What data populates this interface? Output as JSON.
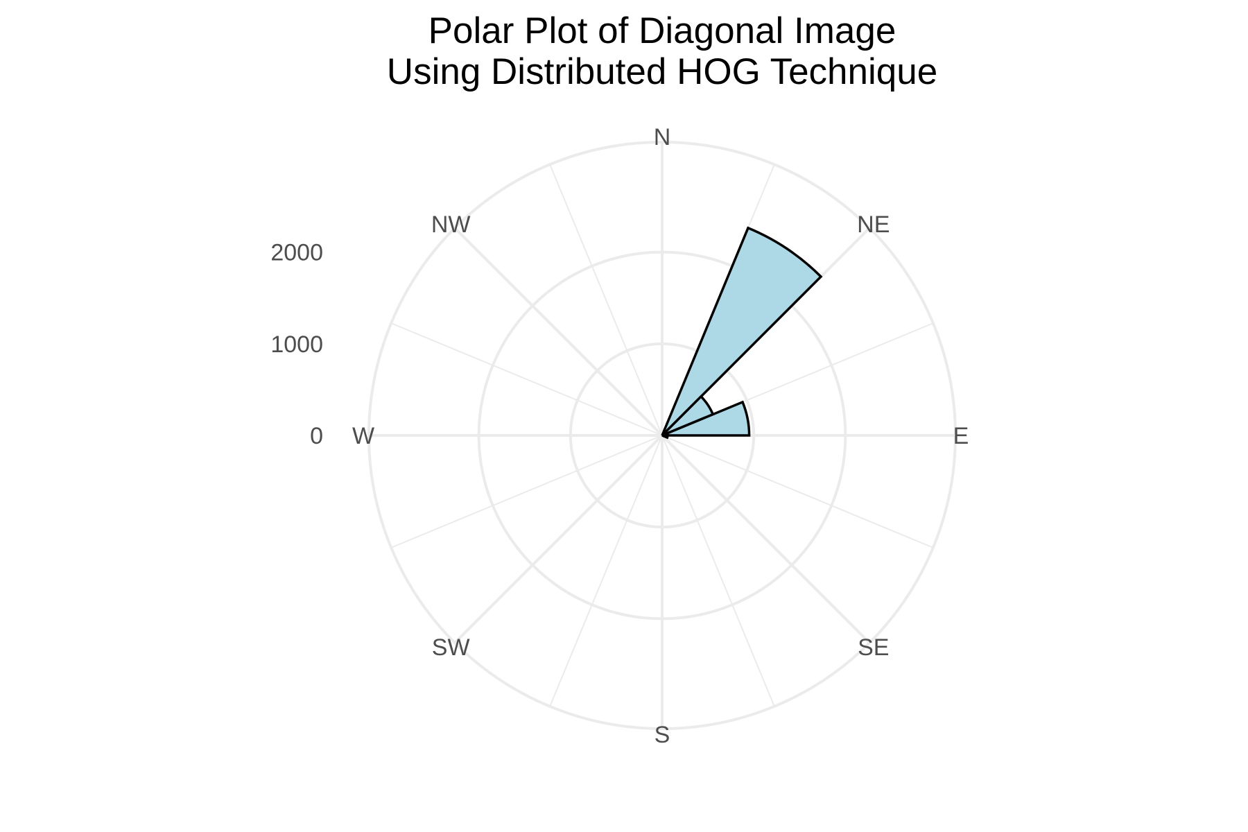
{
  "chart_data": {
    "type": "bar",
    "coordinate_system": "polar",
    "title": "Polar Plot of Diagonal Image\nUsing Distributed HOG Technique",
    "direction_labels": [
      "N",
      "NE",
      "E",
      "SE",
      "S",
      "SW",
      "W",
      "NW"
    ],
    "radial_ticks": [
      0,
      1000,
      2000
    ],
    "radial_max": 3200,
    "bin_width_deg": 22.5,
    "colors": {
      "fill": "#add8e6",
      "outline": "#000000",
      "grid": "#ebebeb"
    },
    "bins": [
      {
        "start_deg": 22.5,
        "end_deg": 45,
        "value": 2450
      },
      {
        "start_deg": 45,
        "end_deg": 67.5,
        "value": 600
      },
      {
        "start_deg": 67.5,
        "end_deg": 90,
        "value": 950
      },
      {
        "start_deg": 90,
        "end_deg": 112.5,
        "value": 60
      }
    ]
  }
}
